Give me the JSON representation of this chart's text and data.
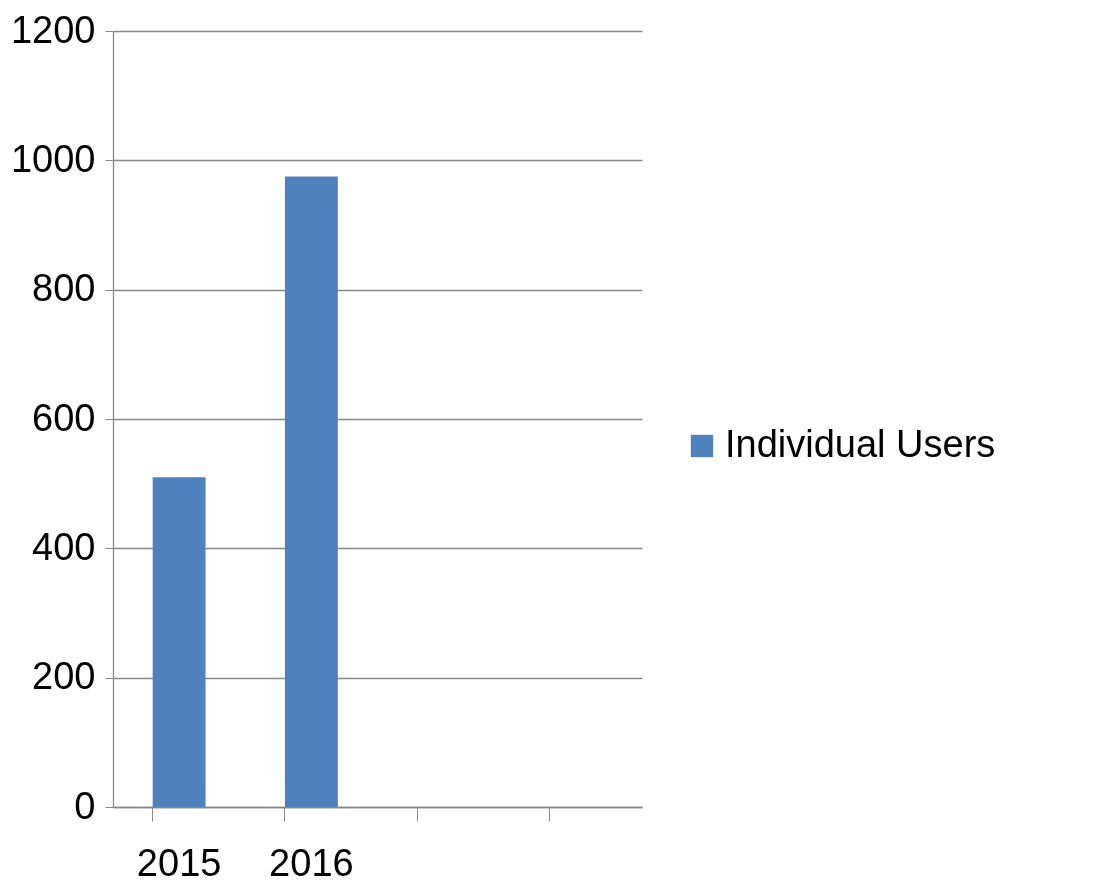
{
  "chart_data": {
    "type": "bar",
    "categories": [
      "2015",
      "2016",
      null,
      null
    ],
    "series": [
      {
        "name": "Individual Users",
        "color": "#4f81bd",
        "values": [
          510,
          975,
          null,
          null
        ]
      }
    ],
    "ylim": [
      0,
      1200
    ],
    "yticks": [
      0,
      200,
      400,
      600,
      800,
      1000,
      1200
    ],
    "grid": "y",
    "legend": "right"
  }
}
